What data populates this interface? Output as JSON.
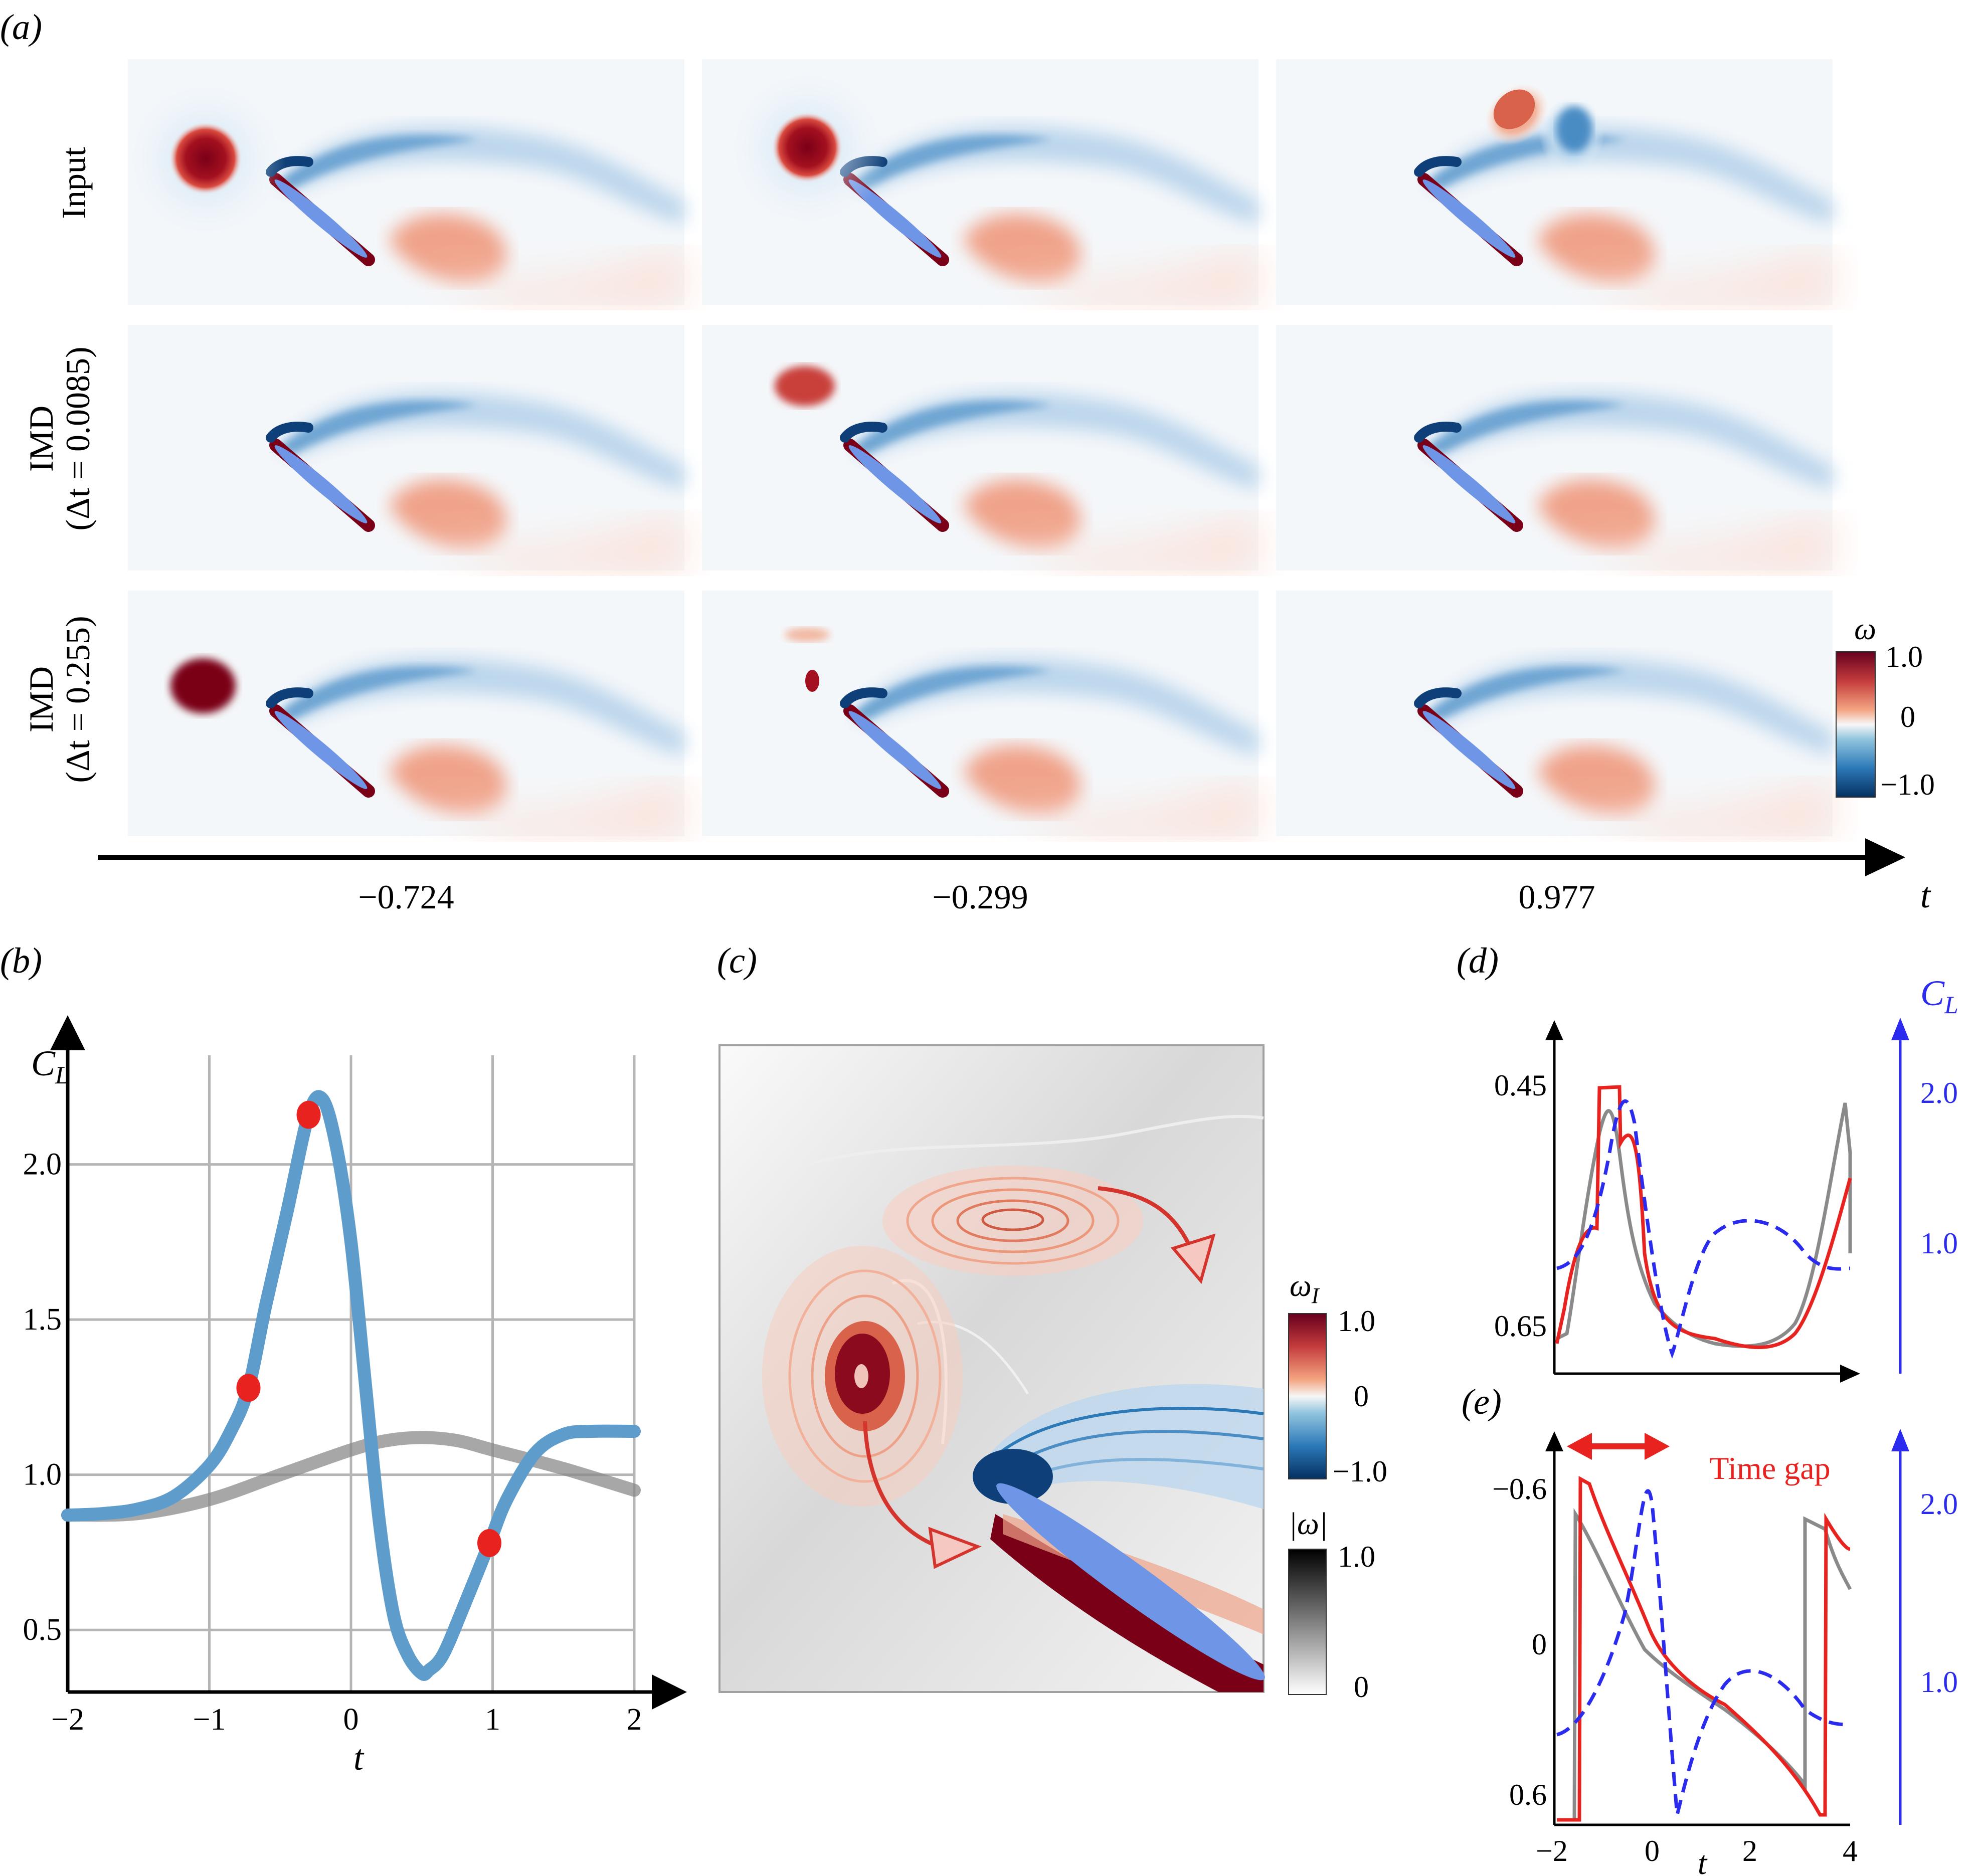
{
  "panels": {
    "a": {
      "label": "(a)",
      "row_labels": [
        "Input",
        "IMD",
        "(Δt = 0.0085)",
        "IMD",
        "(Δt = 0.255)"
      ],
      "times": [
        "−0.724",
        "−0.299",
        "0.977"
      ],
      "axis_label": "t",
      "colorbar": {
        "title": "ω",
        "max": "1.0",
        "mid": "0",
        "min": "−1.0"
      }
    },
    "b": {
      "label": "(b)",
      "ylabel_main": "C",
      "ylabel_sub": "L",
      "xlabel": "t"
    },
    "c": {
      "label": "(c)",
      "colorbar1": {
        "title_main": "ω",
        "title_sub": "I",
        "max": "1.0",
        "mid": "0",
        "min": "−1.0"
      },
      "colorbar2": {
        "title": "|ω|",
        "max": "1.0",
        "min": "0"
      }
    },
    "d": {
      "label": "(d)",
      "right_label_main": "C",
      "right_label_sub": "L"
    },
    "e": {
      "label": "(e)",
      "annotation": "Time gap",
      "xlabel": "t"
    }
  },
  "colors": {
    "red": "#e8231f",
    "blue_curve": "#5e9ccc",
    "gray_curve": "#8a8a8a",
    "cl_dashed": "#2b2bf0",
    "vort_pos": "#8b0a1e",
    "vort_neg": "#0f4f8a",
    "airfoil": "#6e95e6"
  },
  "chart_data": [
    {
      "type": "line",
      "panel": "b",
      "xlabel": "t",
      "ylabel": "C_L",
      "xlim": [
        -2,
        2
      ],
      "ylim": [
        0.3,
        2.4
      ],
      "xticks": [
        "−2",
        "−1",
        "0",
        "1",
        "2"
      ],
      "yticks": [
        "0.5",
        "1.0",
        "1.5",
        "2.0"
      ],
      "grid": true,
      "series": [
        {
          "x": [
            -2.0,
            -1.75,
            -1.5,
            -1.25,
            -1.0,
            -0.85,
            -0.724,
            -0.6,
            -0.45,
            -0.299,
            -0.2,
            -0.1,
            0.0,
            0.1,
            0.2,
            0.3,
            0.4,
            0.5,
            0.55,
            0.65,
            0.8,
            0.977,
            1.1,
            1.3,
            1.5,
            1.7,
            2.0
          ],
          "y": [
            0.87,
            0.875,
            0.89,
            0.93,
            1.03,
            1.14,
            1.28,
            1.55,
            1.85,
            2.16,
            2.21,
            2.05,
            1.75,
            1.3,
            0.85,
            0.55,
            0.42,
            0.36,
            0.37,
            0.42,
            0.58,
            0.78,
            0.92,
            1.07,
            1.13,
            1.14,
            1.14
          ]
        },
        {
          "x": [
            -2.0,
            -1.5,
            -1.0,
            -0.5,
            0.0,
            0.25,
            0.5,
            0.75,
            1.0,
            1.5,
            2.0
          ],
          "y": [
            0.87,
            0.875,
            0.92,
            1.0,
            1.08,
            1.11,
            1.12,
            1.11,
            1.08,
            1.02,
            0.95
          ]
        }
      ],
      "markers": {
        "x": [
          -0.724,
          -0.299,
          0.977
        ],
        "y": [
          1.28,
          2.16,
          0.78
        ]
      }
    },
    {
      "type": "line",
      "panel": "d",
      "xlim": [
        -2,
        4
      ],
      "yticks_left": [
        "0.45",
        "0.65"
      ],
      "yticks_right": [
        "1.0",
        "2.0"
      ]
    },
    {
      "type": "line",
      "panel": "e",
      "xlabel": "t",
      "xlim": [
        -2,
        4
      ],
      "xticks": [
        "−2",
        "0",
        "2",
        "4"
      ],
      "yticks_left": [
        "−0.6",
        "0",
        "0.6"
      ],
      "yticks_right": [
        "1.0",
        "2.0"
      ]
    }
  ]
}
